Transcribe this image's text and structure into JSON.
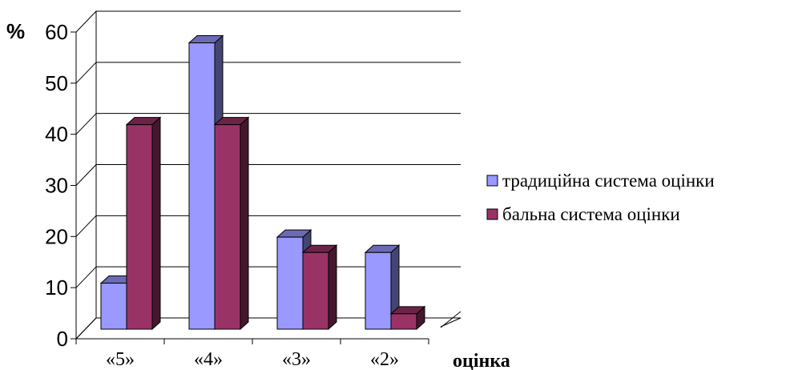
{
  "chart_data": {
    "type": "bar",
    "ylabel": "%",
    "xlabel": "оцінка",
    "categories": [
      "«5»",
      "«4»",
      "«3»",
      "«2»"
    ],
    "yticks": [
      "0",
      "10",
      "20",
      "30",
      "40",
      "50",
      "60"
    ],
    "ylim": [
      0,
      60
    ],
    "grid": true,
    "legend_position": "right",
    "series": [
      {
        "name": "традиційна система оцінки",
        "values": [
          9,
          56,
          18,
          15
        ],
        "color": "#9999FF"
      },
      {
        "name": "бальна система оцінки",
        "values": [
          40,
          40,
          15,
          3
        ],
        "color": "#993366"
      }
    ]
  }
}
